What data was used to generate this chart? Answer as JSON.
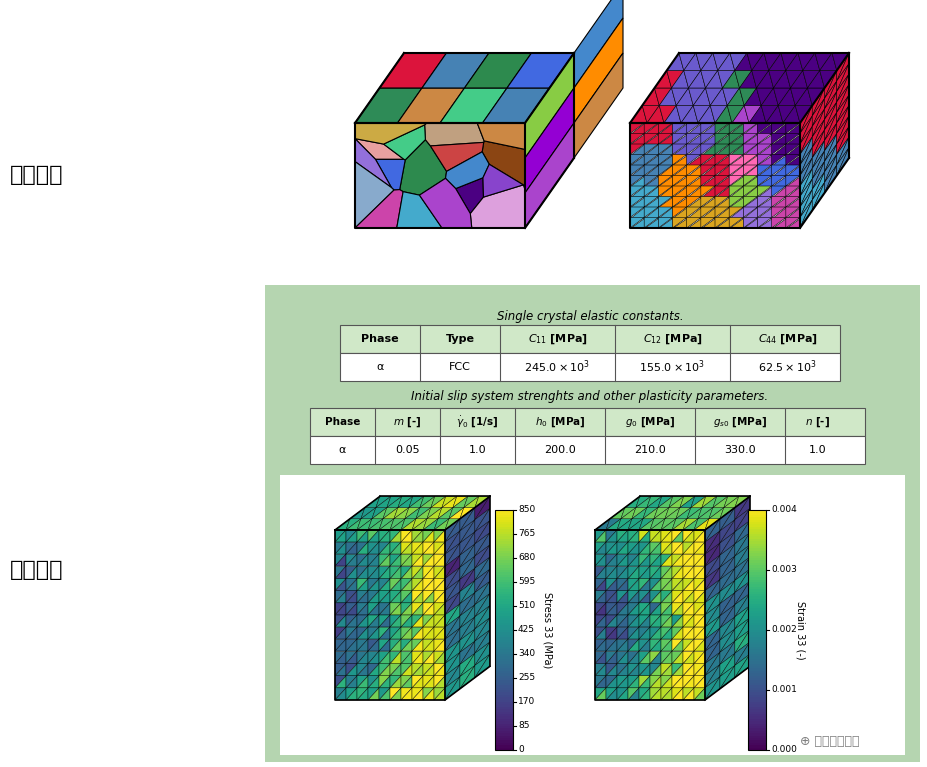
{
  "bg_color": "#f0f0f0",
  "green_bg": "#b5d5b0",
  "white": "#ffffff",
  "label_jihe": "几何模型",
  "label_cailiao": "材料参数",
  "table1_title": "Single crystal elastic constants.",
  "table1_headers": [
    "Phase",
    "Type",
    "$C_{11}$ [MPa]",
    "$C_{12}$ [MPa]",
    "$C_{44}$ [MPa]"
  ],
  "table1_row": [
    "α",
    "FCC",
    "$245.0 \\times 10^{3}$",
    "$155.0 \\times 10^{3}$",
    "$62.5 \\times 10^{3}$"
  ],
  "table2_title": "Initial slip system strenghts and other plasticity parameters.",
  "table2_headers": [
    "Phase",
    "$m$ [-]",
    "$\\dot{\\gamma}_0$ [1/s]",
    "$h_0$ [MPa]",
    "$g_0$ [MPa]",
    "$g_{s0}$ [MPa]",
    "$n$ [-]"
  ],
  "table2_row": [
    "α",
    "0.05",
    "1.0",
    "200.0",
    "210.0",
    "330.0",
    "1.0"
  ],
  "colorbar1_label": "Stress 33 (MPa)",
  "colorbar1_ticks": [
    0,
    85,
    170,
    255,
    340,
    425,
    510,
    595,
    680,
    765,
    850
  ],
  "colorbar2_label": "Strain 33 (-)",
  "colorbar2_ticks": [
    0.0,
    0.001,
    0.002,
    0.003,
    0.004
  ],
  "wechat_label": "我的博士日记"
}
